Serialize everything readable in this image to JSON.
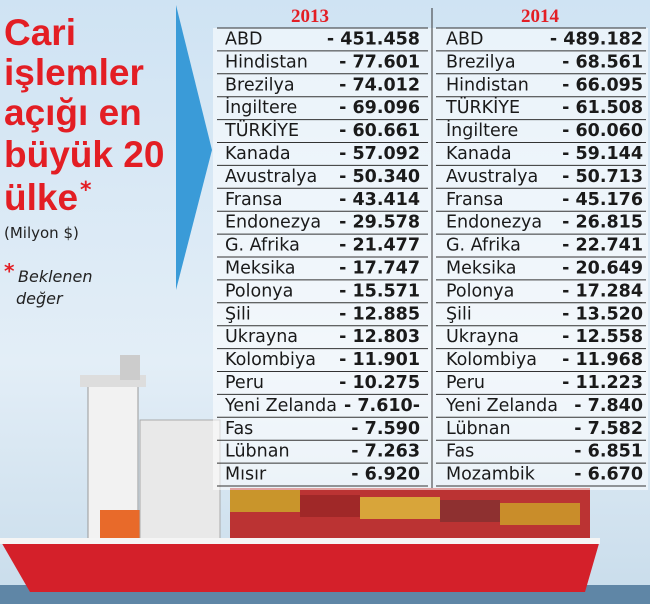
{
  "title": {
    "lines": [
      "Cari",
      "işlemler",
      "açığı en",
      "büyük 20",
      "ülke"
    ],
    "marker": "*"
  },
  "subtitle": "(Milyon $)",
  "note": {
    "marker": "*",
    "lines": [
      "Beklenen",
      "değer"
    ]
  },
  "highlight_color": "#e31e24",
  "tables": [
    {
      "year": "2013",
      "highlight_rows": [
        4
      ],
      "rows": [
        [
          "ABD",
          "- 451.458"
        ],
        [
          "Hindistan",
          "- 77.601"
        ],
        [
          "Brezilya",
          "- 74.012"
        ],
        [
          "İngiltere",
          "- 69.096"
        ],
        [
          "TÜRKİYE",
          "- 60.661"
        ],
        [
          "Kanada",
          "- 57.092"
        ],
        [
          "Avustralya",
          "- 50.340"
        ],
        [
          "Fransa",
          "- 43.414"
        ],
        [
          "Endonezya",
          "- 29.578"
        ],
        [
          "G. Afrika",
          "- 21.477"
        ],
        [
          "Meksika",
          "- 17.747"
        ],
        [
          "Polonya",
          "- 15.571"
        ],
        [
          "Şili",
          "- 12.885"
        ],
        [
          "Ukrayna",
          "- 12.803"
        ],
        [
          "Kolombiya",
          "- 11.901"
        ],
        [
          "Peru",
          "- 10.275"
        ],
        [
          "Yeni Zelanda",
          "- 7.610-"
        ],
        [
          "Fas",
          "- 7.590"
        ],
        [
          "Lübnan",
          "- 7.263"
        ],
        [
          "Mısır",
          "- 6.920"
        ]
      ]
    },
    {
      "year": "2014",
      "highlight_rows": [
        3
      ],
      "rows": [
        [
          "ABD",
          "- 489.182"
        ],
        [
          "Brezilya",
          "- 68.561"
        ],
        [
          "Hindistan",
          "- 66.095"
        ],
        [
          "TÜRKİYE",
          "- 61.508"
        ],
        [
          "İngiltere",
          "- 60.060"
        ],
        [
          "Kanada",
          "- 59.144"
        ],
        [
          "Avustralya",
          "- 50.713"
        ],
        [
          "Fransa",
          "- 45.176"
        ],
        [
          "Endonezya",
          "- 26.815"
        ],
        [
          "G. Afrika",
          "- 22.741"
        ],
        [
          "Meksika",
          "- 20.649"
        ],
        [
          "Polonya",
          "- 17.284"
        ],
        [
          "Şili",
          "- 13.520"
        ],
        [
          "Ukrayna",
          "- 12.558"
        ],
        [
          "Kolombiya",
          "- 11.968"
        ],
        [
          "Peru",
          "- 11.223"
        ],
        [
          "Yeni Zelanda",
          "- 7.840"
        ],
        [
          "Lübnan",
          "- 7.582"
        ],
        [
          "Fas",
          "- 6.851"
        ],
        [
          "Mozambik",
          "- 6.670"
        ]
      ]
    }
  ]
}
